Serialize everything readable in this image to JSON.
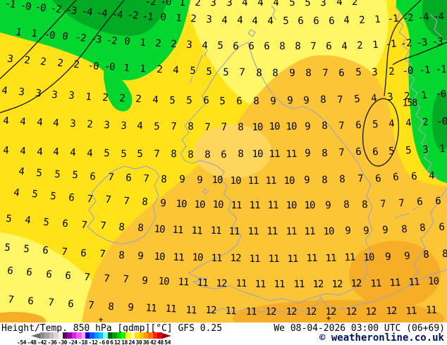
{
  "map": {
    "contour_label": "158",
    "temperature_rows": [
      [
        "-2",
        "-0",
        "1",
        "2",
        "3",
        "3",
        "4",
        "4",
        "4",
        "5",
        "5",
        "3",
        "4",
        "2"
      ],
      [
        "-1",
        "-0",
        "-0",
        "-2",
        "-3",
        "-4",
        "-4",
        "-4",
        "-2",
        "-1",
        "0",
        "1",
        "2",
        "3",
        "4",
        "4",
        "4",
        "4",
        "5",
        "6",
        "6",
        "6",
        "4",
        "2",
        "1",
        "-1",
        "-2",
        "-4",
        "-4"
      ],
      [
        "1",
        "1",
        "-0",
        "0",
        "-2",
        "-3",
        "-2",
        "0",
        "1",
        "2",
        "2",
        "3",
        "4",
        "5",
        "6",
        "6",
        "6",
        "8",
        "8",
        "7",
        "6",
        "4",
        "2",
        "1",
        "-1",
        "-2",
        "-3",
        "-3"
      ],
      [
        "3",
        "2",
        "2",
        "2",
        "2",
        "-0",
        "-0",
        "1",
        "1",
        "2",
        "4",
        "5",
        "5",
        "5",
        "7",
        "8",
        "8",
        "9",
        "8",
        "7",
        "6",
        "5",
        "3",
        "2",
        "-0",
        "-1",
        "-1"
      ],
      [
        "4",
        "3",
        "3",
        "3",
        "3",
        "1",
        "2",
        "2",
        "2",
        "4",
        "5",
        "5",
        "6",
        "5",
        "6",
        "8",
        "9",
        "9",
        "9",
        "8",
        "7",
        "5",
        "4",
        "3",
        "2",
        "1",
        "-0"
      ],
      [
        "4",
        "4",
        "4",
        "4",
        "3",
        "2",
        "3",
        "3",
        "4",
        "5",
        "7",
        "8",
        "7",
        "7",
        "8",
        "10",
        "10",
        "10",
        "9",
        "8",
        "7",
        "6",
        "5",
        "4",
        "4",
        "2",
        "-0"
      ],
      [
        "4",
        "4",
        "4",
        "4",
        "4",
        "4",
        "5",
        "5",
        "5",
        "7",
        "8",
        "8",
        "8",
        "6",
        "8",
        "10",
        "11",
        "11",
        "9",
        "8",
        "7",
        "6",
        "6",
        "5",
        "5",
        "3",
        "1"
      ],
      [
        "4",
        "5",
        "5",
        "5",
        "6",
        "7",
        "6",
        "7",
        "8",
        "9",
        "9",
        "10",
        "10",
        "11",
        "11",
        "10",
        "9",
        "8",
        "8",
        "7",
        "6",
        "6",
        "6",
        "4"
      ],
      [
        "4",
        "5",
        "5",
        "6",
        "7",
        "7",
        "7",
        "8",
        "9",
        "10",
        "10",
        "10",
        "11",
        "11",
        "11",
        "10",
        "10",
        "9",
        "8",
        "8",
        "7",
        "7",
        "6",
        "6"
      ],
      [
        "5",
        "4",
        "5",
        "6",
        "7",
        "7",
        "8",
        "8",
        "10",
        "11",
        "11",
        "11",
        "11",
        "11",
        "11",
        "11",
        "11",
        "10",
        "9",
        "9",
        "9",
        "8",
        "8",
        "6"
      ],
      [
        "5",
        "5",
        "6",
        "7",
        "6",
        "7",
        "8",
        "9",
        "10",
        "11",
        "10",
        "11",
        "12",
        "11",
        "11",
        "11",
        "11",
        "11",
        "11",
        "10",
        "9",
        "9",
        "8",
        "8"
      ],
      [
        "6",
        "6",
        "6",
        "6",
        "7",
        "7",
        "7",
        "9",
        "10",
        "11",
        "11",
        "12",
        "11",
        "11",
        "11",
        "11",
        "12",
        "12",
        "12",
        "11",
        "11",
        "11",
        "10"
      ],
      [
        "7",
        "6",
        "7",
        "6",
        "7",
        "8",
        "9",
        "11",
        "11",
        "11",
        "12",
        "11",
        "11",
        "12",
        "12",
        "12",
        "12",
        "12",
        "12",
        "12",
        "11",
        "11"
      ]
    ],
    "region_colors": {
      "yellow": "#ffe318",
      "pale_yellow": "#fff765",
      "amber": "#fbc536",
      "light_amber": "#ffd65c",
      "deep_amber": "#f6ad27",
      "green": "#04d630",
      "dark_green": "#00aa22"
    }
  },
  "footer": {
    "title": "Height/Temp. 850 hPa [gdmp][°C] GFS 0.25",
    "datetime": "We 08-04-2026 03:00 UTC (06+69)",
    "copyright": "© weatheronline.co.uk",
    "scale": {
      "labels": [
        "-54",
        "-48",
        "-42",
        "-36",
        "-30",
        "-24",
        "-18",
        "-12",
        "-6",
        "0",
        "6",
        "12",
        "18",
        "24",
        "30",
        "36",
        "42",
        "48",
        "54"
      ],
      "cells": [
        "#8c8c8c",
        "#a5a5a5",
        "#bebebe",
        "#d7d7d7",
        "#f0f0f0",
        "#600060",
        "#9600b4",
        "#d228d2",
        "#ff50ff",
        "#ffa0ff",
        "#0014c8",
        "#1450ff",
        "#0096ff",
        "#00c8ff",
        "#82ffff",
        "#006400",
        "#00a000",
        "#00d200",
        "#00ff00",
        "#ffff00",
        "#ffffaa",
        "#ffe100",
        "#ffc300",
        "#ff9b00",
        "#ff6e00",
        "#ff2800",
        "#e10000"
      ]
    }
  }
}
